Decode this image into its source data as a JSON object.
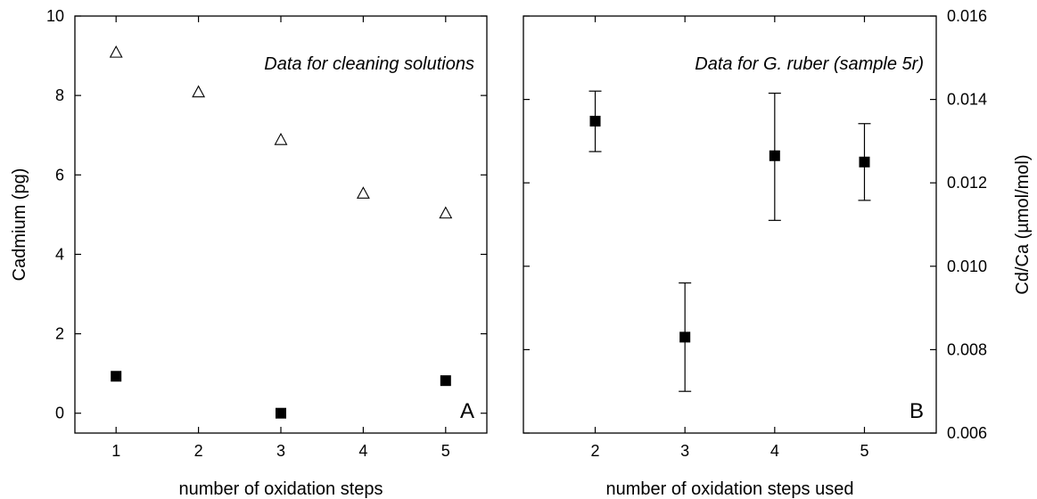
{
  "chart_data": [
    {
      "type": "scatter",
      "panel_label": "A",
      "annotation": "Data for cleaning solutions",
      "xlabel": "number of oxidation steps",
      "ylabel": "Cadmium (pg)",
      "xlim": [
        0.5,
        5.5
      ],
      "ylim": [
        -0.5,
        10
      ],
      "xticks": [
        "1",
        "2",
        "3",
        "4",
        "5"
      ],
      "yticks": [
        "0",
        "2",
        "4",
        "6",
        "8",
        "10"
      ],
      "series": [
        {
          "marker": "open-triangle",
          "x": [
            1,
            2,
            3,
            4,
            5
          ],
          "y": [
            9.1,
            8.1,
            6.9,
            5.55,
            5.05
          ]
        },
        {
          "marker": "filled-square",
          "x": [
            1,
            3,
            5
          ],
          "y": [
            0.93,
            0.0,
            0.82
          ]
        }
      ]
    },
    {
      "type": "scatter",
      "panel_label": "B",
      "annotation": "Data for G. ruber (sample 5r)",
      "xlabel": "number of oxidation steps used",
      "ylabel": "Cd/Ca (µmol/mol)",
      "xlim": [
        1.2,
        5.8
      ],
      "ylim": [
        0.006,
        0.016
      ],
      "xticks": [
        "2",
        "3",
        "4",
        "5"
      ],
      "yticks": [
        "0.006",
        "0.008",
        "0.010",
        "0.012",
        "0.014",
        "0.016"
      ],
      "y_axis_side": "right",
      "series": [
        {
          "marker": "filled-square",
          "x": [
            2,
            3,
            4,
            5
          ],
          "y": [
            0.01348,
            0.0083,
            0.01265,
            0.0125
          ],
          "y_err_low": [
            0.01275,
            0.007,
            0.0111,
            0.01158
          ],
          "y_err_high": [
            0.0142,
            0.0096,
            0.01415,
            0.01342
          ]
        }
      ]
    }
  ]
}
